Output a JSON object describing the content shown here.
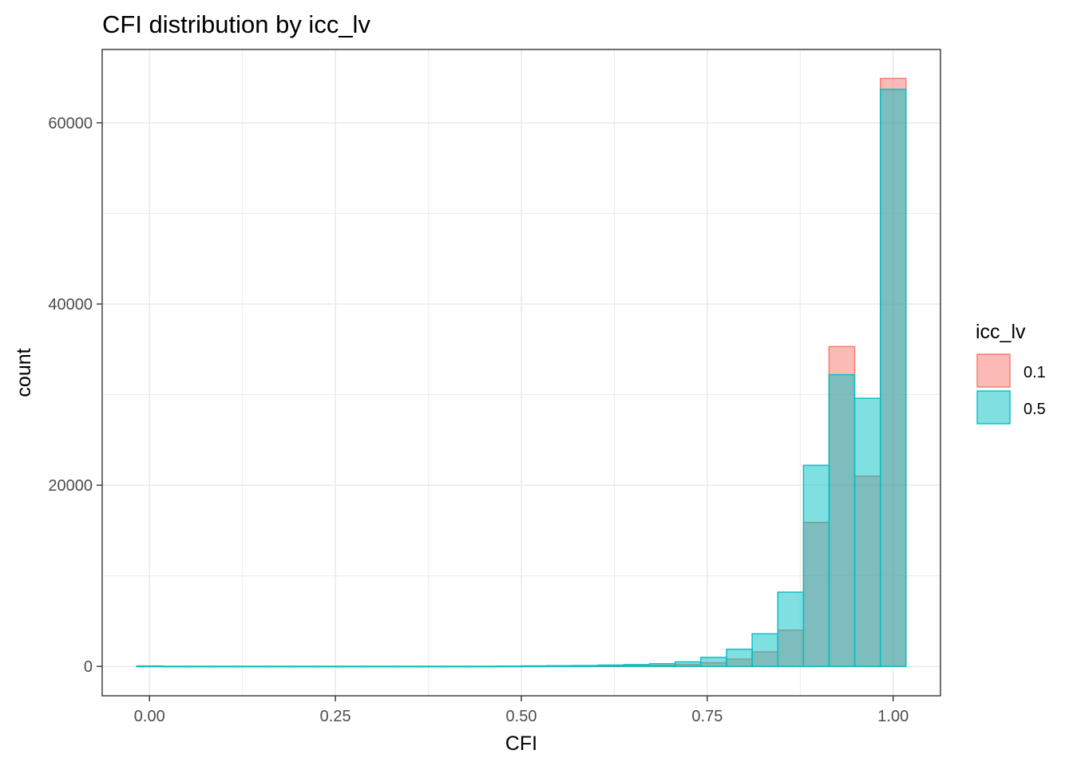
{
  "chart_data": {
    "type": "bar",
    "title": "CFI distribution by icc_lv",
    "xlabel": "CFI",
    "ylabel": "count",
    "xlim": [
      -0.0636,
      1.0636
    ],
    "ylim": [
      -3243,
      68097
    ],
    "x_ticks": [
      0.0,
      0.25,
      0.5,
      0.75,
      1.0
    ],
    "x_tick_labels": [
      "0.00",
      "0.25",
      "0.50",
      "0.75",
      "1.00"
    ],
    "y_ticks": [
      0,
      20000,
      40000,
      60000
    ],
    "y_tick_labels": [
      "0",
      "20000",
      "40000",
      "60000"
    ],
    "bin_width": 0.0345,
    "bin_centers": [
      0.0,
      0.0345,
      0.069,
      0.1034,
      0.1379,
      0.1724,
      0.2069,
      0.2414,
      0.2759,
      0.3103,
      0.3448,
      0.3793,
      0.4138,
      0.4483,
      0.4828,
      0.5172,
      0.5517,
      0.5862,
      0.6207,
      0.6552,
      0.6897,
      0.7241,
      0.7586,
      0.7931,
      0.8276,
      0.8621,
      0.8966,
      0.931,
      0.9655,
      1.0
    ],
    "series": [
      {
        "name": "0.1",
        "fill": "#F8766D",
        "values": [
          50,
          10,
          10,
          10,
          10,
          10,
          10,
          10,
          10,
          10,
          10,
          10,
          10,
          10,
          20,
          30,
          40,
          50,
          60,
          80,
          120,
          200,
          400,
          800,
          1600,
          4000,
          15900,
          35300,
          21000,
          64900
        ]
      },
      {
        "name": "0.5",
        "fill": "#00BFC4",
        "values": [
          20,
          10,
          10,
          10,
          10,
          10,
          10,
          10,
          10,
          10,
          10,
          10,
          10,
          10,
          30,
          60,
          80,
          100,
          150,
          200,
          300,
          500,
          1000,
          1900,
          3600,
          8200,
          22200,
          32200,
          29600,
          63700
        ]
      }
    ],
    "legend": {
      "title": "icc_lv",
      "position": "right",
      "entries": [
        "0.1",
        "0.5"
      ]
    },
    "grid": true,
    "fill_opacity": 0.5
  }
}
